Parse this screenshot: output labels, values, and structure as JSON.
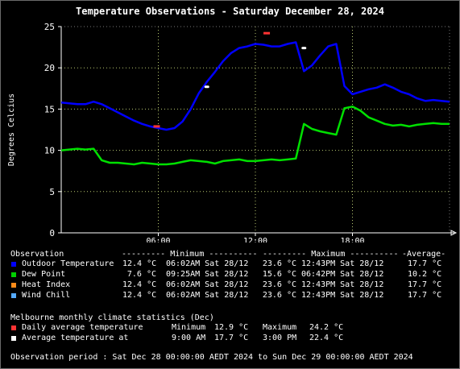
{
  "title": "Temperature Observations - Saturday December 28, 2024",
  "chart_data": {
    "type": "line",
    "ylabel": "Degrees Celcius",
    "xlabel": "",
    "ylim": [
      0,
      25
    ],
    "xlim": [
      0,
      24
    ],
    "yticks": [
      0,
      5,
      10,
      15,
      20,
      25
    ],
    "xticks": [
      6,
      12,
      18
    ],
    "xtick_labels": [
      "06:00",
      "12:00",
      "18:00"
    ],
    "grid": true,
    "series": [
      {
        "name": "Outdoor Temperature",
        "color": "#0000ff",
        "x": [
          0,
          0.5,
          1,
          1.5,
          2,
          2.5,
          3,
          3.5,
          4,
          4.5,
          5,
          5.5,
          6,
          6.5,
          7,
          7.5,
          8,
          8.5,
          9,
          9.5,
          10,
          10.5,
          11,
          11.5,
          12,
          12.5,
          13,
          13.5,
          14,
          14.5,
          15,
          15.5,
          16,
          16.5,
          17,
          17.5,
          18,
          18.5,
          19,
          19.5,
          20,
          20.5,
          21,
          21.5,
          22,
          22.5,
          23,
          23.5,
          24
        ],
        "values": [
          15.8,
          15.7,
          15.6,
          15.6,
          15.9,
          15.6,
          15.1,
          14.6,
          14.1,
          13.6,
          13.2,
          12.9,
          12.7,
          12.5,
          12.7,
          13.5,
          15.0,
          16.9,
          18.3,
          19.5,
          20.8,
          21.8,
          22.4,
          22.6,
          22.9,
          22.8,
          22.6,
          22.6,
          22.9,
          23.1,
          19.6,
          20.3,
          21.5,
          22.6,
          22.9,
          17.8,
          16.8,
          17.1,
          17.4,
          17.6,
          18.0,
          17.6,
          17.1,
          16.8,
          16.3,
          16.0,
          16.1,
          16.0,
          15.9
        ]
      },
      {
        "name": "Dew Point",
        "color": "#00e000",
        "x": [
          0,
          0.5,
          1,
          1.5,
          2,
          2.5,
          3,
          3.5,
          4,
          4.5,
          5,
          5.5,
          6,
          6.5,
          7,
          7.5,
          8,
          8.5,
          9,
          9.5,
          10,
          10.5,
          11,
          11.5,
          12,
          12.5,
          13,
          13.5,
          14,
          14.5,
          15,
          15.5,
          16,
          16.5,
          17,
          17.5,
          18,
          18.5,
          19,
          19.5,
          20,
          20.5,
          21,
          21.5,
          22,
          22.5,
          23,
          23.5,
          24
        ],
        "values": [
          10.0,
          10.1,
          10.2,
          10.1,
          10.2,
          8.8,
          8.5,
          8.5,
          8.4,
          8.3,
          8.5,
          8.4,
          8.3,
          8.3,
          8.4,
          8.6,
          8.8,
          8.7,
          8.6,
          8.4,
          8.7,
          8.8,
          8.9,
          8.7,
          8.7,
          8.8,
          8.9,
          8.8,
          8.9,
          9.0,
          13.2,
          12.6,
          12.3,
          12.1,
          11.9,
          15.1,
          15.3,
          14.8,
          14.0,
          13.6,
          13.2,
          13.0,
          13.1,
          12.9,
          13.1,
          13.2,
          13.3,
          13.2,
          13.2
        ]
      }
    ],
    "markers": [
      {
        "name": "Daily average temperature",
        "kind": "daily-range",
        "x": 5.9,
        "y": 12.9,
        "color": "#ff3333"
      },
      {
        "name": "Daily average temperature",
        "kind": "daily-range",
        "x": 12.7,
        "y": 24.2,
        "color": "#ff3333"
      },
      {
        "name": "Average temperature at",
        "kind": "point",
        "x": 9.0,
        "y": 17.7,
        "color": "#ffffff"
      },
      {
        "name": "Average temperature at",
        "kind": "point",
        "x": 15.0,
        "y": 22.4,
        "color": "#ffffff"
      }
    ]
  },
  "colors": {
    "outdoor": "#0000ff",
    "dew": "#00d000",
    "heat": "#ff8c1a",
    "wind": "#55aaff",
    "daily": "#ff3333",
    "avg": "#ffffff"
  },
  "table": {
    "header": {
      "label": "Observation",
      "min": "--------- Minimum ----------",
      "max": "--------- Maximum ----------",
      "avg": "-Average-"
    },
    "rows": [
      {
        "label": "Outdoor Temperature",
        "min_val": "12.4 °C",
        "min_time": "06:02AM Sat 28/12",
        "max_val": "23.6 °C",
        "max_time": "12:43PM Sat 28/12",
        "avg": "17.7 °C"
      },
      {
        "label": "Dew Point",
        "min_val": "7.6 °C",
        "min_time": "09:25AM Sat 28/12",
        "max_val": "15.6 °C",
        "max_time": "06:42PM Sat 28/12",
        "avg": "10.2 °C"
      },
      {
        "label": "Heat Index",
        "min_val": "12.4 °C",
        "min_time": "06:02AM Sat 28/12",
        "max_val": "23.6 °C",
        "max_time": "12:43PM Sat 28/12",
        "avg": "17.7 °C"
      },
      {
        "label": "Wind Chill",
        "min_val": "12.4 °C",
        "min_time": "06:02AM Sat 28/12",
        "max_val": "23.6 °C",
        "max_time": "12:43PM Sat 28/12",
        "avg": "17.7 °C"
      }
    ]
  },
  "climate": {
    "heading": "Melbourne monthly climate statistics (Dec)",
    "daily_label": "Daily average temperature",
    "daily_min_label": "Minimum",
    "daily_min": "12.9 °C",
    "daily_max_label": "Maximum",
    "daily_max": "24.2 °C",
    "avg_label": "Average temperature at",
    "avg1_time": "9:00 AM",
    "avg1_val": "17.7 °C",
    "avg2_time": "3:00 PM",
    "avg2_val": "22.4 °C"
  },
  "period": "Observation period : Sat Dec 28 00:00:00 AEDT 2024 to Sun Dec 29 00:00:00 AEDT 2024"
}
